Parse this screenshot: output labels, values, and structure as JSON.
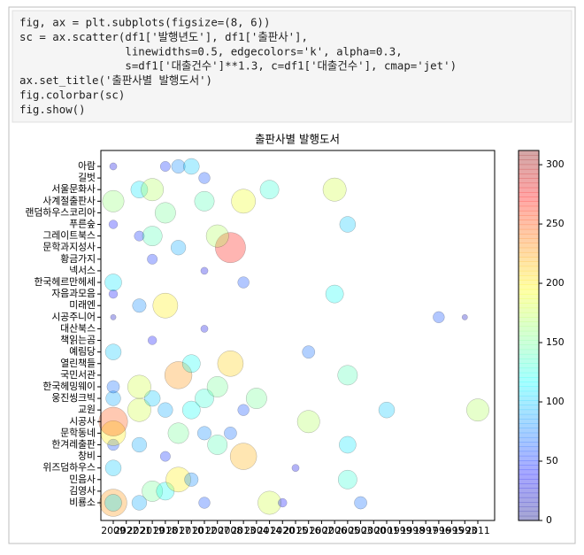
{
  "code": {
    "lines": [
      "fig, ax = plt.subplots(figsize=(8, 6))",
      "sc = ax.scatter(df1['발행년도'], df1['출판사'],",
      "                linewidths=0.5, edgecolors='k', alpha=0.3,",
      "                s=df1['대출건수']**1.3, c=df1['대출건수'], cmap='jet')",
      "ax.set_title('출판사별 발행도서')",
      "fig.colorbar(sc)",
      "fig.show()"
    ]
  },
  "chart_data": {
    "type": "scatter",
    "title": "출판사별 발행도서",
    "categories": [
      "2009",
      "2022",
      "2021",
      "2019",
      "2018",
      "2017",
      "2010",
      "2012",
      "2007",
      "2008",
      "2013",
      "2004",
      "2014",
      "2020",
      "2015",
      "2016",
      "2002",
      "2006",
      "2005",
      "2003",
      "2000",
      "2001",
      "1999",
      "1998",
      "1997",
      "1996",
      "1995",
      "1993",
      "2011"
    ],
    "y_categories": [
      "비룡소",
      "김영사",
      "민음사",
      "위즈덤하우스",
      "창비",
      "한겨레출판",
      "문학동네",
      "시공사",
      "교원",
      "웅진씽크빅",
      "한국헤밍웨이",
      "국민서관",
      "열린책들",
      "예림당",
      "책읽는곰",
      "대산북스",
      "시공주니어",
      "미래엔",
      "자음과모음",
      "한국헤르만헤세",
      "넥서스",
      "황금가지",
      "문학과지성사",
      "그레이트북스",
      "푸른숲",
      "랜덤하우스코리아",
      "사계절출판사",
      "서울문화사",
      "길벗",
      "아람"
    ],
    "x": [
      "2009",
      "2009",
      "2021",
      "2012",
      "2019",
      "2018",
      "2017",
      "2010",
      "2014",
      "2020",
      "2005",
      "2003",
      "2009",
      "2018",
      "2013",
      "2015",
      "2009",
      "2021",
      "2007",
      "2005",
      "2009",
      "2012",
      "2017",
      "2008",
      "2016",
      "2009",
      "2021",
      "2018",
      "2010",
      "2013",
      "2001",
      "2011",
      "2009",
      "2012",
      "2019",
      "2004",
      "2009",
      "2021",
      "2007",
      "2005",
      "2017",
      "2008",
      "2010",
      "2009",
      "2016",
      "2019",
      "2012",
      "2009",
      "1996",
      "1993",
      "2018",
      "2021",
      "2009",
      "2006",
      "2009",
      "2013",
      "2012",
      "2019",
      "2008",
      "2017",
      "2021",
      "2007",
      "2019",
      "2005",
      "2009",
      "2018",
      "2009",
      "2013",
      "2012",
      "2021",
      "2019",
      "2014",
      "2006",
      "2012",
      "2018",
      "2017",
      "2010",
      "2009"
    ],
    "y": [
      "비룡소",
      "비룡소",
      "비룡소",
      "비룡소",
      "김영사",
      "김영사",
      "민음사",
      "민음사",
      "비룡소",
      "비룡소",
      "민음사",
      "비룡소",
      "위즈덤하우스",
      "창비",
      "창비",
      "위즈덤하우스",
      "한겨레출판",
      "한겨레출판",
      "한겨레출판",
      "한겨레출판",
      "문학동네",
      "문학동네",
      "문학동네",
      "문학동네",
      "시공사",
      "시공사",
      "교원",
      "교원",
      "교원",
      "교원",
      "교원",
      "교원",
      "웅진씽크빅",
      "웅진씽크빅",
      "웅진씽크빅",
      "웅진씽크빅",
      "한국헤밍웨이",
      "한국헤밍웨이",
      "한국헤밍웨이",
      "국민서관",
      "국민서관",
      "열린책들",
      "열린책들",
      "예림당",
      "예림당",
      "책읽는곰",
      "대산북스",
      "시공주니어",
      "시공주니어",
      "시공주니어",
      "미래엔",
      "미래엔",
      "자음과모음",
      "자음과모음",
      "한국헤르만헤세",
      "한국헤르만헤세",
      "넥서스",
      "황금가지",
      "문학과지성사",
      "문학과지성사",
      "그레이트북스",
      "그레이트북스",
      "그레이트북스",
      "푸른숲",
      "푸른숲",
      "랜덤하우스코리아",
      "사계절출판사",
      "사계절출판사",
      "사계절출판사",
      "서울문화사",
      "서울문화사",
      "서울문화사",
      "서울문화사",
      "길벗",
      "아람",
      "아람",
      "아람",
      "아람"
    ],
    "values": [
      230,
      110,
      90,
      60,
      150,
      120,
      200,
      80,
      180,
      40,
      130,
      70,
      100,
      50,
      220,
      30,
      60,
      90,
      140,
      110,
      200,
      80,
      150,
      70,
      170,
      250,
      180,
      90,
      120,
      60,
      100,
      170,
      90,
      130,
      100,
      150,
      70,
      180,
      150,
      140,
      230,
      210,
      120,
      100,
      70,
      40,
      30,
      20,
      60,
      20,
      200,
      80,
      40,
      120,
      110,
      60,
      30,
      50,
      270,
      90,
      50,
      170,
      140,
      100,
      40,
      150,
      160,
      190,
      140,
      110,
      170,
      130,
      180,
      60,
      50,
      80,
      100,
      30
    ],
    "cmap": "jet",
    "alpha": 0.3,
    "edgecolor": "#000000",
    "clim": [
      0,
      312
    ],
    "cticks": [
      0,
      50,
      100,
      150,
      200,
      250,
      300
    ]
  }
}
